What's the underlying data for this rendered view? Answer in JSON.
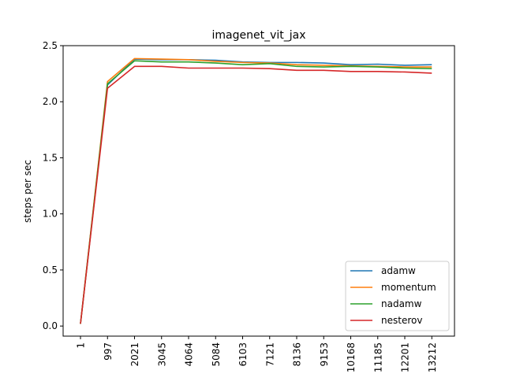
{
  "chart_data": {
    "type": "line",
    "title": "imagenet_vit_jax",
    "xlabel": "",
    "ylabel": "steps per sec",
    "x_ticks": [
      "1",
      "997",
      "2021",
      "3045",
      "4064",
      "5084",
      "6103",
      "7121",
      "8136",
      "9153",
      "10168",
      "11185",
      "12201",
      "13212"
    ],
    "y_ticks": [
      "0.0",
      "0.5",
      "1.0",
      "1.5",
      "2.0",
      "2.5"
    ],
    "ylim": [
      -0.09,
      2.5
    ],
    "legend_position": "lower-right",
    "grid": false,
    "series": [
      {
        "name": "adamw",
        "color": "#1f77b4",
        "points": [
          [
            1,
            0.02
          ],
          [
            997,
            2.15
          ],
          [
            2021,
            2.38
          ],
          [
            3045,
            2.375
          ],
          [
            4064,
            2.375
          ],
          [
            5084,
            2.37
          ],
          [
            6103,
            2.355
          ],
          [
            7121,
            2.35
          ],
          [
            8136,
            2.35
          ],
          [
            9153,
            2.345
          ],
          [
            10168,
            2.33
          ],
          [
            11185,
            2.335
          ],
          [
            12201,
            2.325
          ],
          [
            13212,
            2.33
          ]
        ]
      },
      {
        "name": "momentum",
        "color": "#ff7f0e",
        "points": [
          [
            1,
            0.02
          ],
          [
            997,
            2.18
          ],
          [
            2021,
            2.385
          ],
          [
            3045,
            2.38
          ],
          [
            4064,
            2.375
          ],
          [
            5084,
            2.36
          ],
          [
            6103,
            2.35
          ],
          [
            7121,
            2.345
          ],
          [
            8136,
            2.33
          ],
          [
            9153,
            2.325
          ],
          [
            10168,
            2.32
          ],
          [
            11185,
            2.315
          ],
          [
            12201,
            2.31
          ],
          [
            13212,
            2.31
          ]
        ]
      },
      {
        "name": "nadamw",
        "color": "#2ca02c",
        "points": [
          [
            1,
            0.02
          ],
          [
            997,
            2.16
          ],
          [
            2021,
            2.365
          ],
          [
            3045,
            2.355
          ],
          [
            4064,
            2.355
          ],
          [
            5084,
            2.345
          ],
          [
            6103,
            2.33
          ],
          [
            7121,
            2.34
          ],
          [
            8136,
            2.315
          ],
          [
            9153,
            2.31
          ],
          [
            10168,
            2.315
          ],
          [
            11185,
            2.31
          ],
          [
            12201,
            2.3
          ],
          [
            13212,
            2.295
          ]
        ]
      },
      {
        "name": "nesterov",
        "color": "#d62728",
        "points": [
          [
            1,
            0.02
          ],
          [
            997,
            2.12
          ],
          [
            2021,
            2.315
          ],
          [
            3045,
            2.315
          ],
          [
            4064,
            2.3
          ],
          [
            5084,
            2.3
          ],
          [
            6103,
            2.3
          ],
          [
            7121,
            2.295
          ],
          [
            8136,
            2.28
          ],
          [
            9153,
            2.28
          ],
          [
            10168,
            2.27
          ],
          [
            11185,
            2.27
          ],
          [
            12201,
            2.265
          ],
          [
            13212,
            2.255
          ]
        ]
      }
    ]
  }
}
